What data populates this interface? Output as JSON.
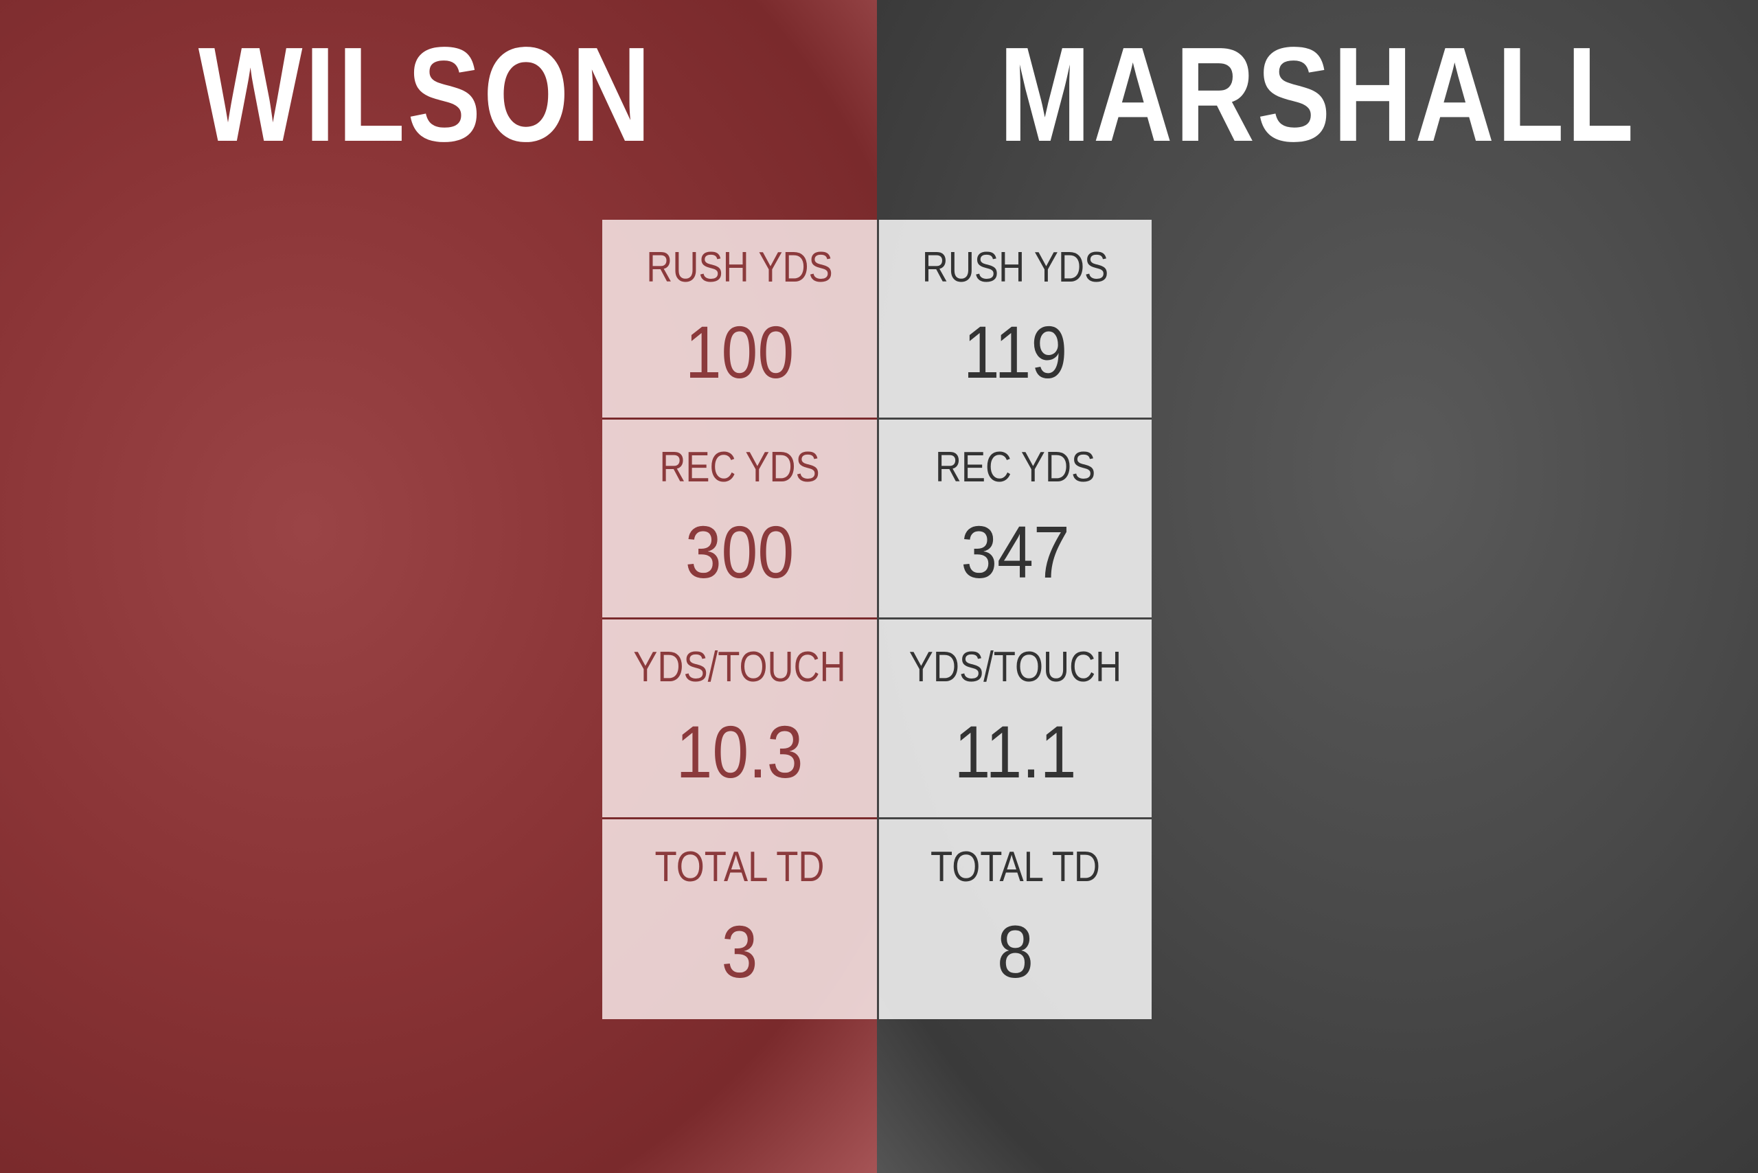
{
  "players": [
    {
      "name": "WILSON",
      "stats": [
        {
          "label": "RUSH YDS",
          "value": 100
        },
        {
          "label": "REC YDS",
          "value": 300
        },
        {
          "label": "YDS/TOUCH",
          "value": 10.3
        },
        {
          "label": "TOTAL TD",
          "value": 3
        }
      ]
    },
    {
      "name": "MARSHALL",
      "stats": [
        {
          "label": "RUSH YDS",
          "value": 119
        },
        {
          "label": "REC YDS",
          "value": 347
        },
        {
          "label": "YDS/TOUCH",
          "value": 11.1
        },
        {
          "label": "TOTAL TD",
          "value": 8
        }
      ]
    }
  ]
}
